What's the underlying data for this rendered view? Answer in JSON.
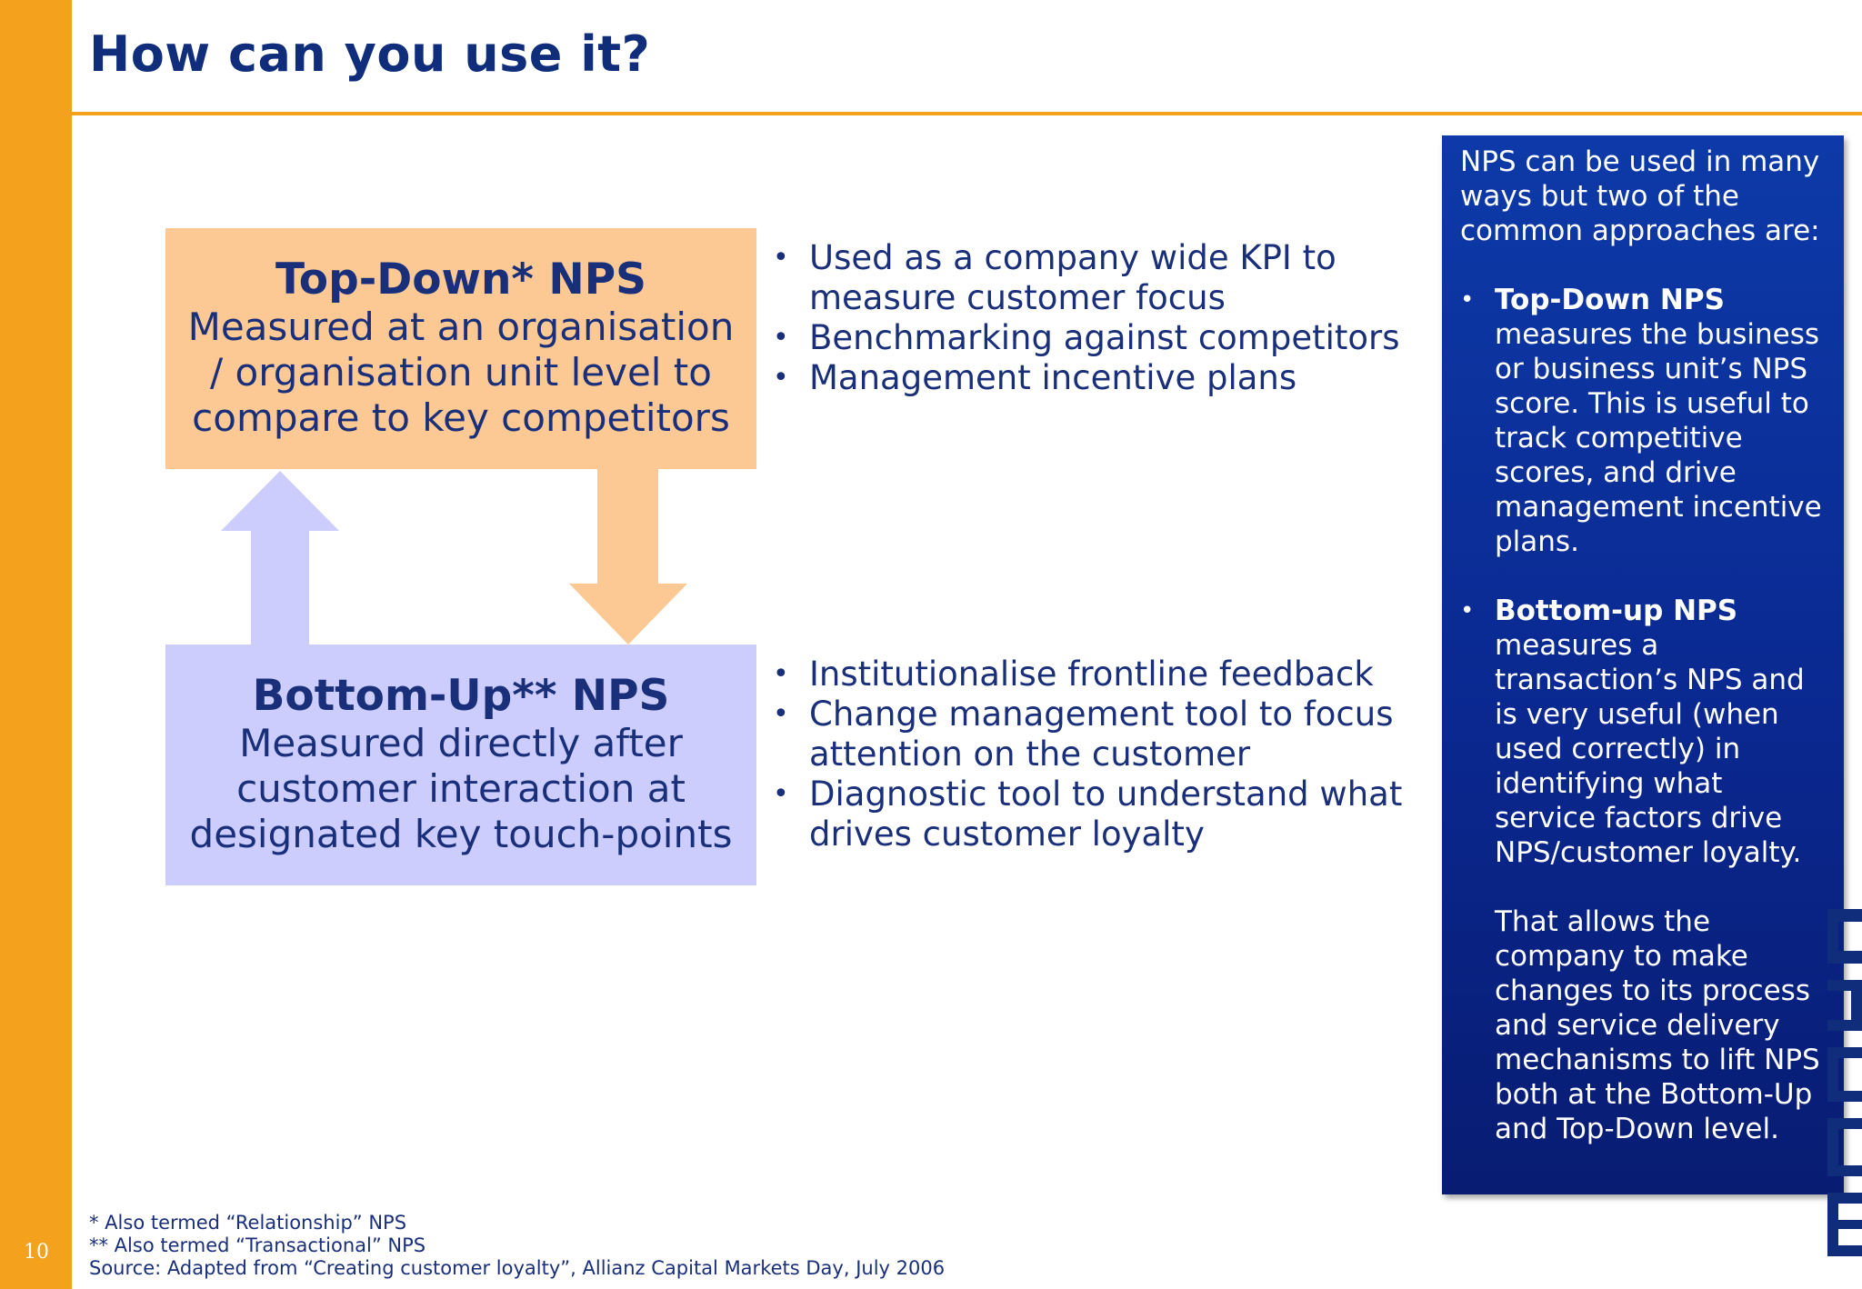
{
  "slide": {
    "title": "How can you use it?",
    "page_number": "10"
  },
  "top_box": {
    "heading": "Top-Down* NPS",
    "line1": "Measured at an organisation",
    "line2": "/ organisation unit level to",
    "line3": "compare to key competitors"
  },
  "bottom_box": {
    "heading": "Bottom-Up** NPS",
    "line1": "Measured directly after",
    "line2": "customer interaction at",
    "line3": "designated key touch-points"
  },
  "top_bullets": [
    "Used as a company wide KPI to measure customer focus",
    "Benchmarking against competitors",
    "Management incentive plans"
  ],
  "bottom_bullets": [
    "Institutionalise frontline feedback",
    "Change management tool to focus attention on the customer",
    "Diagnostic tool to understand what drives customer loyalty"
  ],
  "side_panel": {
    "intro": "NPS can be used in many ways but two of the common approaches are:",
    "item1_bold": "Top-Down NPS",
    "item1_text": "measures the business or business unit’s NPS score.  This is useful to track competitive scores, and drive management incentive plans.",
    "item2_bold": "Bottom-up NPS",
    "item2_text": "measures a transaction’s NPS and is very useful (when used correctly) in identifying what service factors drive NPS/customer loyalty.",
    "item2_extra": "That allows the company to make changes to its process and service delivery mechanisms to lift NPS both at the Bottom-Up and Top-Down level."
  },
  "footnotes": {
    "note1": "* Also termed “Relationship” NPS",
    "note2": "** Also termed “Transactional” NPS",
    "source": "Source: Adapted from “Creating customer loyalty”,  Allianz Capital Markets Day, July 2006"
  },
  "colors": {
    "accent_orange": "#f4a21d",
    "navy": "#0f2d7a",
    "top_box_fill": "#fcc994",
    "bottom_box_fill": "#cccdfd",
    "panel_blue": "#0a2890"
  }
}
